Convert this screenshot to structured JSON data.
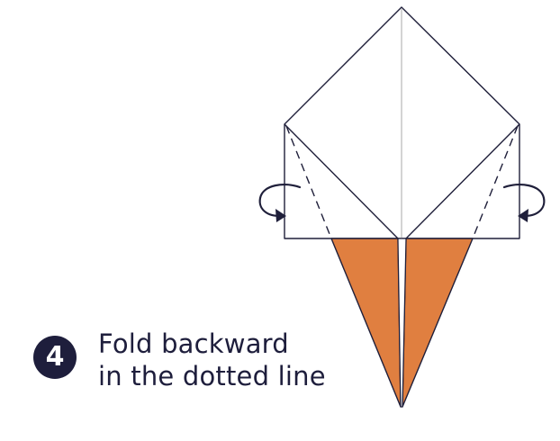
{
  "step": {
    "number": "4",
    "line1": "Fold backward",
    "line2": "in the dotted line"
  },
  "colors": {
    "paper_white": "#ffffff",
    "paper_orange": "#e07f40",
    "outline": "#1f1f3a",
    "center_crease": "#bdbdbd",
    "badge": "#1e1e3c",
    "text": "#1e1e3c"
  },
  "icons": [
    "fold-backward-arrow-icon",
    "fold-backward-arrow-icon"
  ]
}
